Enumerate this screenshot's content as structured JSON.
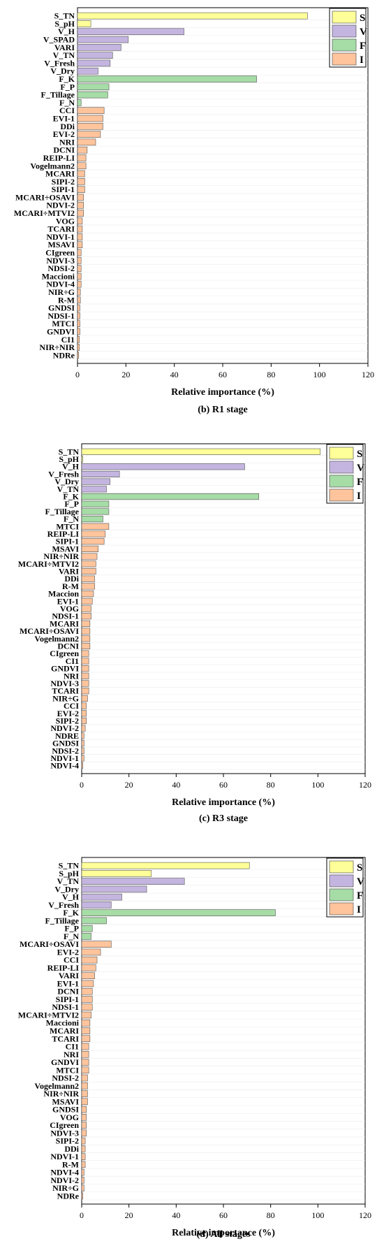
{
  "legend": [
    {
      "key": "S",
      "label": "S",
      "color": "#ffff99"
    },
    {
      "key": "V",
      "label": "V",
      "color": "#c4b5e0"
    },
    {
      "key": "F",
      "label": "F",
      "color": "#a6dca6"
    },
    {
      "key": "I",
      "label": "I",
      "color": "#ffc49c"
    }
  ],
  "chart_data": [
    {
      "type": "bar",
      "orientation": "horizontal",
      "title": "(b) R1 stage",
      "xlabel": "Relative importance (%)",
      "xlim": [
        0,
        120
      ],
      "xticks": [
        0,
        20,
        40,
        60,
        80,
        100,
        120
      ],
      "legend_position": "top-right",
      "categories": [
        "S_TN",
        "S_pH",
        "V_H",
        "V_SPAD",
        "VARI",
        "V_TN",
        "V_Fresh",
        "V_Dry",
        "F_K",
        "F_P",
        "F_Tillage",
        "F_N",
        "CCI",
        "EVI-1",
        "DDi",
        "EVI-2",
        "NRI",
        "DCNI",
        "REIP-LI",
        "Vogelmann2",
        "MCARI",
        "SIPI-2",
        "SIPI-1",
        "MCARI÷OSAVI",
        "NDVI-2",
        "MCARI÷MTVI2",
        "VOG",
        "TCARI",
        "NDVI-1",
        "MSAVI",
        "CIgreen",
        "NDVI-3",
        "NDSI-2",
        "Maccioni",
        "NDVI-4",
        "NIR÷G",
        "R-M",
        "GNDSI",
        "NDSI-1",
        "MTCI",
        "GNDVI",
        "CI1",
        "NIR÷NIR",
        "NDRe"
      ],
      "groups": [
        "S",
        "S",
        "V",
        "V",
        "V",
        "V",
        "V",
        "V",
        "F",
        "F",
        "F",
        "F",
        "I",
        "I",
        "I",
        "I",
        "I",
        "I",
        "I",
        "I",
        "I",
        "I",
        "I",
        "I",
        "I",
        "I",
        "I",
        "I",
        "I",
        "I",
        "I",
        "I",
        "I",
        "I",
        "I",
        "I",
        "I",
        "I",
        "I",
        "I",
        "I",
        "I",
        "I",
        "I"
      ],
      "values": [
        95,
        5.5,
        44,
        21,
        18,
        14.5,
        13.5,
        8.5,
        74,
        13,
        12.5,
        1.5,
        11,
        10.5,
        10.5,
        9.5,
        7.5,
        4,
        3.5,
        3.5,
        3,
        3,
        3,
        2.5,
        2.5,
        2.5,
        2,
        2,
        2,
        2,
        1.5,
        1.5,
        1.5,
        1.5,
        1.5,
        1.2,
        1.2,
        1,
        1,
        1,
        1,
        0.8,
        0.8,
        0.5
      ]
    },
    {
      "type": "bar",
      "orientation": "horizontal",
      "title": "(c) R3 stage",
      "xlabel": "Relative importance (%)",
      "xlim": [
        0,
        120
      ],
      "xticks": [
        0,
        20,
        40,
        60,
        80,
        100,
        120
      ],
      "legend_position": "top-right",
      "categories": [
        "S_TN",
        "S_pH",
        "V_H",
        "V_Fresh",
        "V_Dry",
        "V_TN",
        "F_K",
        "F_P",
        "F_Tillage",
        "F_N",
        "MTCI",
        "REIP-LI",
        "SIPI-1",
        "MSAVI",
        "NIR÷NIR",
        "MCARI÷MTVI2",
        "VARI",
        "DDi",
        "R-M",
        "Maccion",
        "EVI-1",
        "VOG",
        "NDSI-1",
        "MCARI",
        "MCARI÷OSAVI",
        "Vogelmann2",
        "DCNI",
        "CIgreen",
        "CI1",
        "GNDVI",
        "NRI",
        "NDVI-3",
        "TCARI",
        "NIR÷G",
        "CCI",
        "EVI-2",
        "SIPI-2",
        "NDVI-2",
        "NDRE",
        "GNDSI",
        "NDSI-2",
        "NDVI-1",
        "NDVI-4"
      ],
      "groups": [
        "S",
        "S",
        "V",
        "V",
        "V",
        "V",
        "F",
        "F",
        "F",
        "F",
        "I",
        "I",
        "I",
        "I",
        "I",
        "I",
        "I",
        "I",
        "I",
        "I",
        "I",
        "I",
        "I",
        "I",
        "I",
        "I",
        "I",
        "I",
        "I",
        "I",
        "I",
        "I",
        "I",
        "I",
        "I",
        "I",
        "I",
        "I",
        "I",
        "I",
        "I",
        "I",
        "I"
      ],
      "values": [
        101,
        0.5,
        69,
        16,
        12,
        10.5,
        75,
        11.5,
        11.5,
        9,
        11.5,
        10,
        9.5,
        7,
        6.5,
        6,
        6,
        5.5,
        5.5,
        5,
        4.5,
        4,
        4,
        3.5,
        3.5,
        3.5,
        3.5,
        3,
        3,
        3,
        3,
        3,
        3,
        2.5,
        2,
        2,
        2,
        1.5,
        1,
        1,
        1,
        1,
        0.5
      ]
    },
    {
      "type": "bar",
      "orientation": "horizontal",
      "title": "(d) All stages",
      "xlabel": "Relative importance (%)",
      "xlim": [
        0,
        120
      ],
      "xticks": [
        0,
        20,
        40,
        60,
        80,
        100,
        120
      ],
      "legend_position": "top-right",
      "categories": [
        "S_TN",
        "S_pH",
        "V_TN",
        "V_Dry",
        "V_H",
        "V_Fresh",
        "F_K",
        "F_Tillage",
        "F_P",
        "F_N",
        "MCARI÷OSAVI",
        "EVI-2",
        "CCI",
        "REIP-LI",
        "VARI",
        "EVI-1",
        "DCNI",
        "SIPI-1",
        "NDSI-1",
        "MCARI÷MTVI2",
        "Maccioni",
        "MCARI",
        "TCARI",
        "CI1",
        "NRI",
        "GNDVI",
        "MTCI",
        "NDSI-2",
        "Vogelmann2",
        "NIR÷NIR",
        "MSAVI",
        "GNDSI",
        "VOG",
        "CIgreen",
        "NDVI-3",
        "SIPI-2",
        "DDi",
        "NDVI-1",
        "R-M",
        "NDVI-4",
        "NDVI-2",
        "NIR÷G",
        "NDRe"
      ],
      "groups": [
        "S",
        "S",
        "V",
        "V",
        "V",
        "V",
        "F",
        "F",
        "F",
        "F",
        "I",
        "I",
        "I",
        "I",
        "I",
        "I",
        "I",
        "I",
        "I",
        "I",
        "I",
        "I",
        "I",
        "I",
        "I",
        "I",
        "I",
        "I",
        "I",
        "I",
        "I",
        "I",
        "I",
        "I",
        "I",
        "I",
        "I",
        "I",
        "I",
        "I",
        "I",
        "I",
        "I"
      ],
      "values": [
        71,
        29.5,
        43.5,
        27.5,
        17,
        12.5,
        82,
        10.5,
        4.5,
        4,
        12.5,
        8,
        6.5,
        6,
        5.5,
        5,
        4.5,
        4.5,
        4.5,
        4,
        3.5,
        3.5,
        3.5,
        3,
        3,
        3,
        3,
        2.5,
        2.5,
        2.5,
        2.5,
        2,
        2,
        2,
        2,
        1.5,
        1.5,
        1.5,
        1.5,
        1,
        1,
        1,
        0.5
      ]
    }
  ]
}
